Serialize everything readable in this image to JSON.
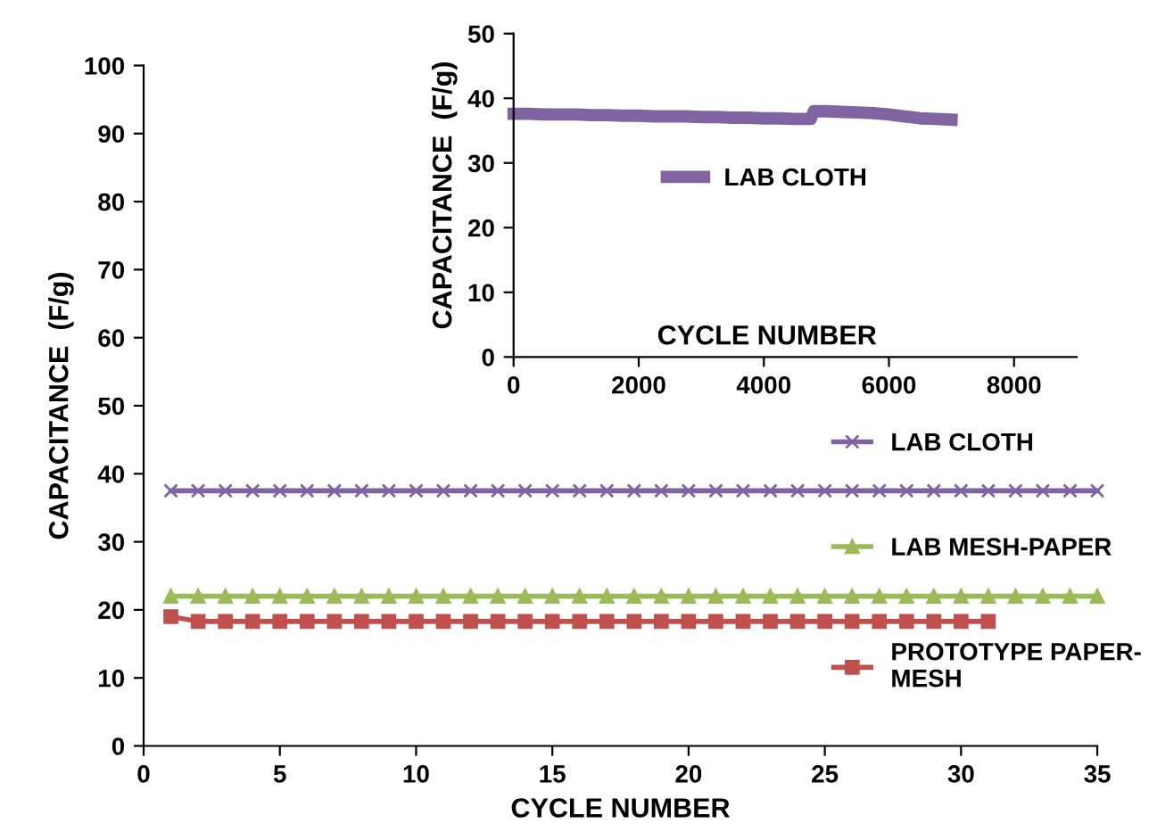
{
  "chart_data": [
    {
      "type": "line",
      "xlabel": "CYCLE NUMBER",
      "ylabel": "CAPACITANCE  (F/g)",
      "xlim": [
        0,
        35
      ],
      "xticks": [
        0,
        5,
        10,
        15,
        20,
        25,
        30,
        35
      ],
      "ylim": [
        0,
        100
      ],
      "yticks": [
        0,
        10,
        20,
        30,
        40,
        50,
        60,
        70,
        80,
        90,
        100
      ],
      "grid": false,
      "legend": "right",
      "series": [
        {
          "name": "LAB CLOTH",
          "color": "#8064a2",
          "marker": "cross",
          "x": [
            1,
            2,
            3,
            4,
            5,
            6,
            7,
            8,
            9,
            10,
            11,
            12,
            13,
            14,
            15,
            16,
            17,
            18,
            19,
            20,
            21,
            22,
            23,
            24,
            25,
            26,
            27,
            28,
            29,
            30,
            31,
            32,
            33,
            34,
            35
          ],
          "values": [
            37.5,
            37.5,
            37.5,
            37.5,
            37.5,
            37.5,
            37.5,
            37.5,
            37.5,
            37.5,
            37.5,
            37.5,
            37.5,
            37.5,
            37.5,
            37.5,
            37.5,
            37.5,
            37.5,
            37.5,
            37.5,
            37.5,
            37.5,
            37.5,
            37.5,
            37.5,
            37.5,
            37.5,
            37.5,
            37.5,
            37.5,
            37.5,
            37.5,
            37.5,
            37.5
          ]
        },
        {
          "name": "LAB MESH-PAPER",
          "color": "#9bbb59",
          "marker": "triangle",
          "x": [
            1,
            2,
            3,
            4,
            5,
            6,
            7,
            8,
            9,
            10,
            11,
            12,
            13,
            14,
            15,
            16,
            17,
            18,
            19,
            20,
            21,
            22,
            23,
            24,
            25,
            26,
            27,
            28,
            29,
            30,
            31,
            32,
            33,
            34,
            35
          ],
          "values": [
            22,
            22,
            22,
            22,
            22,
            22,
            22,
            22,
            22,
            22,
            22,
            22,
            22,
            22,
            22,
            22,
            22,
            22,
            22,
            22,
            22,
            22,
            22,
            22,
            22,
            22,
            22,
            22,
            22,
            22,
            22,
            22,
            22,
            22,
            22
          ]
        },
        {
          "name": "PROTOTYPE PAPER-\nMESH",
          "color": "#c0504d",
          "marker": "square",
          "x": [
            1,
            2,
            3,
            4,
            5,
            6,
            7,
            8,
            9,
            10,
            11,
            12,
            13,
            14,
            15,
            16,
            17,
            18,
            19,
            20,
            21,
            22,
            23,
            24,
            25,
            26,
            27,
            28,
            29,
            30,
            31
          ],
          "values": [
            19,
            18.3,
            18.3,
            18.3,
            18.3,
            18.3,
            18.3,
            18.3,
            18.3,
            18.3,
            18.3,
            18.3,
            18.3,
            18.3,
            18.3,
            18.3,
            18.3,
            18.3,
            18.3,
            18.3,
            18.3,
            18.3,
            18.3,
            18.3,
            18.3,
            18.3,
            18.3,
            18.3,
            18.3,
            18.3,
            18.3
          ]
        }
      ]
    },
    {
      "type": "line",
      "xlabel": "CYCLE NUMBER",
      "ylabel": "CAPACITANCE  (F/g)",
      "xlim": [
        0,
        9000
      ],
      "xticks": [
        0,
        2000,
        4000,
        6000,
        8000
      ],
      "ylim": [
        0,
        50
      ],
      "yticks": [
        0,
        10,
        20,
        30,
        40,
        50
      ],
      "grid": false,
      "legend": "center",
      "series": [
        {
          "name": "LAB CLOTH",
          "color": "#8064a2",
          "marker": "cross",
          "x": [
            0,
            250,
            500,
            750,
            1000,
            1250,
            1500,
            1750,
            2000,
            2250,
            2500,
            2750,
            3000,
            3250,
            3500,
            3750,
            4000,
            4250,
            4500,
            4750,
            4800,
            5000,
            5250,
            5500,
            5750,
            6000,
            6250,
            6500,
            6750,
            7000
          ],
          "values": [
            37.6,
            37.6,
            37.5,
            37.5,
            37.5,
            37.4,
            37.4,
            37.3,
            37.3,
            37.2,
            37.2,
            37.2,
            37.1,
            37.1,
            37.0,
            37.0,
            36.9,
            36.9,
            36.8,
            36.8,
            38.0,
            38.0,
            37.9,
            37.8,
            37.7,
            37.5,
            37.2,
            36.9,
            36.8,
            36.7
          ]
        }
      ]
    }
  ]
}
